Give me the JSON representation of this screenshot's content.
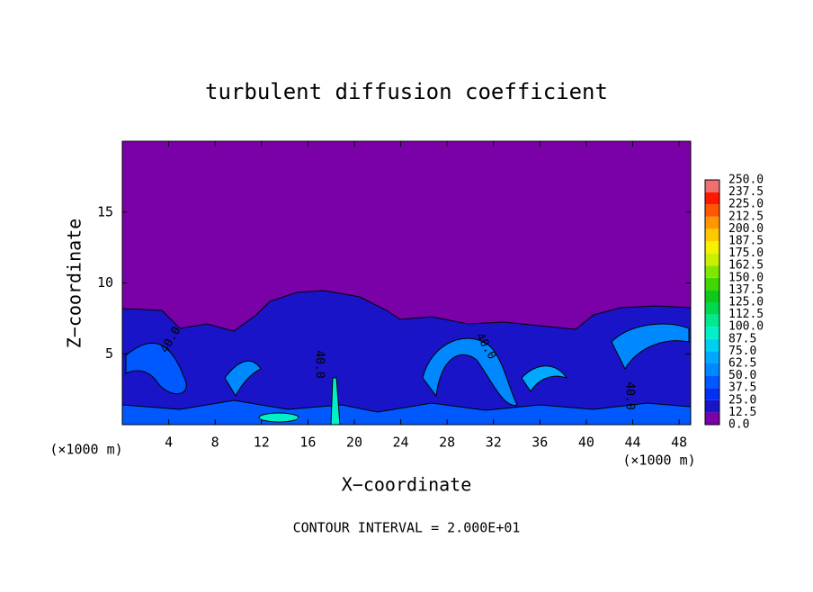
{
  "chart_data": {
    "type": "contour",
    "title": "turbulent diffusion coefficient",
    "x_label": "X−coordinate",
    "y_label": "Z−coordinate",
    "x_unit_left": "(×1000 m)",
    "x_unit_right": "(×1000 m)",
    "footnote": "CONTOUR INTERVAL = 2.000E+01",
    "xlim": [
      0,
      49
    ],
    "ylim": [
      0,
      20
    ],
    "xticks": [
      4,
      8,
      12,
      16,
      20,
      24,
      28,
      32,
      36,
      40,
      44,
      48
    ],
    "yticks": [
      5,
      10,
      15
    ],
    "contour_labels": [
      "40.0",
      "40.0",
      "40.0",
      "40.0"
    ],
    "levels": [
      {
        "value": 0,
        "label": "0.0"
      },
      12.5,
      {
        "value": 25,
        "label": "25.0"
      },
      37.5,
      {
        "value": 50,
        "label": "50.0"
      },
      62.5,
      {
        "value": 75,
        "label": "75.0"
      },
      87.5,
      {
        "value": 100,
        "label": "100.0"
      },
      112.5,
      {
        "value": 125,
        "label": "125.0"
      },
      137.5,
      {
        "value": 150,
        "label": "150.0"
      },
      162.5,
      {
        "value": 175,
        "label": "175.0"
      },
      187.5,
      {
        "value": 200,
        "label": "200.0"
      },
      212.5,
      {
        "value": 225,
        "label": "225.0"
      },
      237.5,
      {
        "value": 250,
        "label": "250.0"
      }
    ],
    "colors": [
      "#7a00a8",
      "#1a14c8",
      "#0030f0",
      "#0058ff",
      "#0088ff",
      "#00a8ff",
      "#00d0f0",
      "#00f0c8",
      "#00e890",
      "#00d850",
      "#10c818",
      "#40d800",
      "#80e800",
      "#c8f000",
      "#f8f000",
      "#ffc800",
      "#ff9800",
      "#ff5800",
      "#ff1800",
      "#f07070"
    ]
  }
}
